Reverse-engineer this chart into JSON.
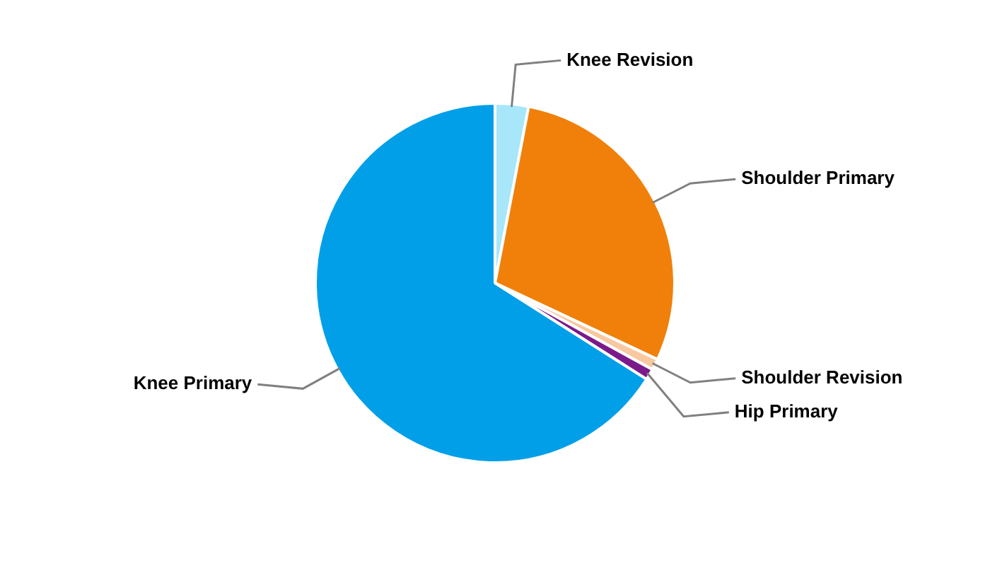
{
  "chart_data": {
    "type": "pie",
    "categories": [
      "Knee Revision",
      "Shoulder Primary",
      "Shoulder Revision",
      "Hip Primary",
      "Knee Primary"
    ],
    "values": [
      3,
      29,
      1,
      1,
      66
    ],
    "colors": [
      "#a8e6fa",
      "#f0800a",
      "#f8c8a0",
      "#7b1a8a",
      "#009fe8"
    ],
    "legend": false
  }
}
